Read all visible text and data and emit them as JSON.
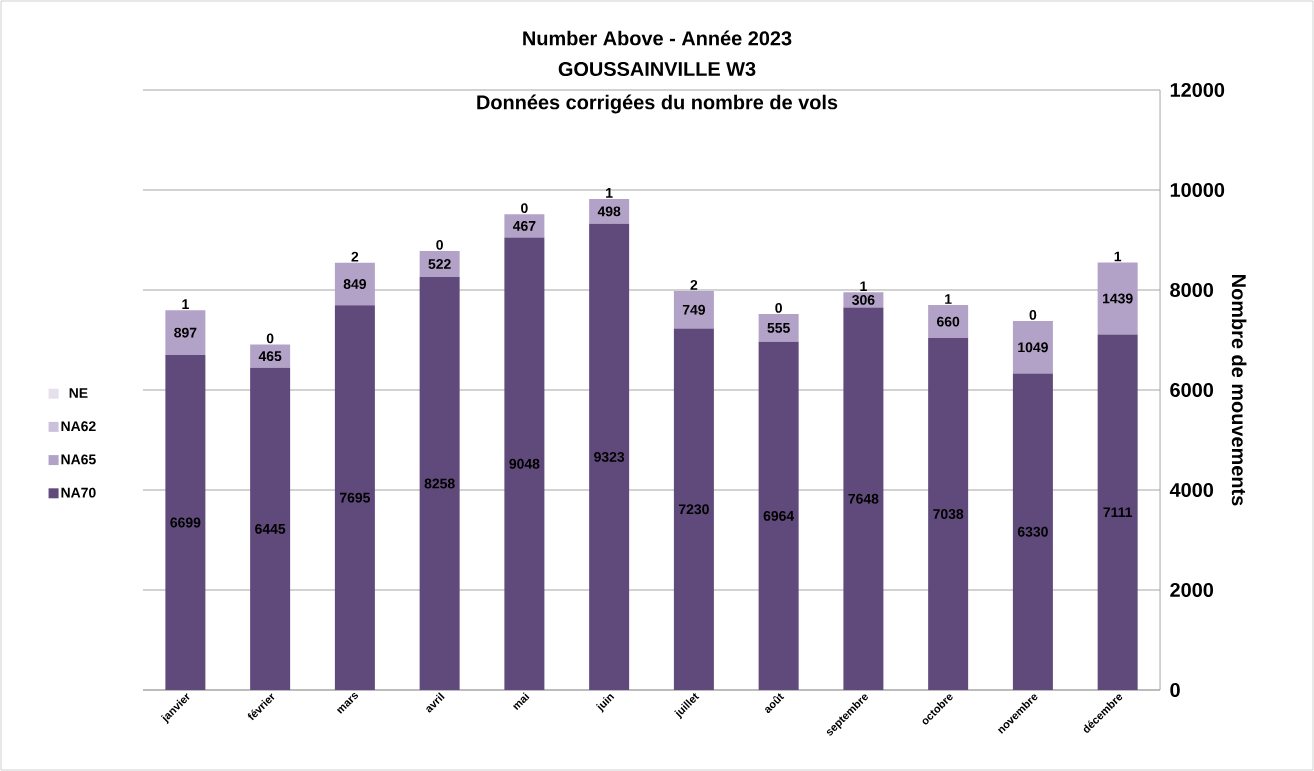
{
  "chart_data": {
    "type": "bar",
    "title": "Number Above - Année 2023",
    "subtitle": "GOUSSAINVILLE W3",
    "annotations": [
      "Données corrigées du nombre de vols"
    ],
    "categories": [
      "janvier",
      "février",
      "mars",
      "avril",
      "mai",
      "juin",
      "juillet",
      "août",
      "septembre",
      "octobre",
      "novembre",
      "décembre"
    ],
    "stacked": true,
    "data_labels": true,
    "grid": "y",
    "legend": "left",
    "ylabel": "Nombre de mouvements",
    "ylim": [
      0,
      12000
    ],
    "yticks": [
      0,
      2000,
      4000,
      6000,
      8000,
      10000,
      12000
    ],
    "series": [
      {
        "name": "NA70",
        "color": "#604a7b",
        "values": [
          6699,
          6445,
          7695,
          8258,
          9048,
          9323,
          7230,
          6964,
          7648,
          7038,
          6330,
          7111
        ]
      },
      {
        "name": "NA65",
        "color": "#b3a2c7",
        "values": [
          897,
          465,
          849,
          522,
          467,
          498,
          749,
          555,
          306,
          660,
          1049,
          1439
        ]
      },
      {
        "name": "NA62",
        "color": "#ccc1da",
        "values": [
          1,
          0,
          2,
          0,
          0,
          1,
          2,
          0,
          1,
          1,
          0,
          1
        ]
      },
      {
        "name": "NE",
        "color": "#e6e0ec",
        "values": [
          null,
          null,
          null,
          null,
          null,
          null,
          null,
          null,
          null,
          null,
          null,
          null
        ]
      }
    ]
  }
}
